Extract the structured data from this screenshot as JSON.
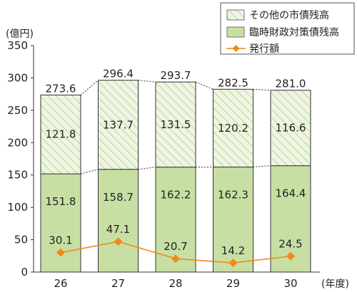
{
  "chart_data": {
    "type": "bar",
    "stacked": true,
    "ylabel": "(億円)",
    "xlabel": "(年度)",
    "ylim": [
      0,
      350
    ],
    "yticks": [
      0,
      50,
      100,
      150,
      200,
      250,
      300,
      350
    ],
    "categories": [
      "26",
      "27",
      "28",
      "29",
      "30"
    ],
    "series": [
      {
        "name": "臨時財政対策債残高",
        "type": "bar",
        "values": [
          151.8,
          158.7,
          162.2,
          162.3,
          164.4
        ]
      },
      {
        "name": "その他の市債残高",
        "type": "bar",
        "values": [
          121.8,
          137.7,
          131.5,
          120.2,
          116.6
        ]
      },
      {
        "name": "発行額",
        "type": "line",
        "values": [
          30.1,
          47.1,
          20.7,
          14.2,
          24.5
        ]
      }
    ],
    "totals": [
      273.6,
      296.4,
      293.7,
      282.5,
      281.0
    ],
    "legend": {
      "position": "top-right",
      "items": [
        "その他の市債残高",
        "臨時財政対策債残高",
        "発行額"
      ]
    },
    "colors": {
      "bottom_fill": "#c8dfa4",
      "top_fill": "#eef5e3",
      "hatch": "#9ec46e",
      "line": "#f08a1c",
      "bar_stroke": "#333333"
    }
  }
}
